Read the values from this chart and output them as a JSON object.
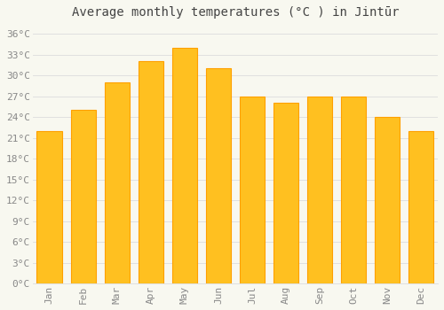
{
  "title": "Average monthly temperatures (°C ) in Jintūr",
  "months": [
    "Jan",
    "Feb",
    "Mar",
    "Apr",
    "May",
    "Jun",
    "Jul",
    "Aug",
    "Sep",
    "Oct",
    "Nov",
    "Dec"
  ],
  "temperatures": [
    22,
    25,
    29,
    32,
    34,
    31,
    27,
    26,
    27,
    27,
    24,
    22
  ],
  "bar_color_main": "#FFC020",
  "bar_color_edge": "#FFA000",
  "background_color": "#F8F8F0",
  "plot_bg_color": "#F8F8F0",
  "grid_color": "#E0E0E0",
  "yticks": [
    0,
    3,
    6,
    9,
    12,
    15,
    18,
    21,
    24,
    27,
    30,
    33,
    36
  ],
  "ylim": [
    0,
    37.5
  ],
  "title_fontsize": 10,
  "tick_fontsize": 8,
  "tick_color": "#888888",
  "title_color": "#444444"
}
